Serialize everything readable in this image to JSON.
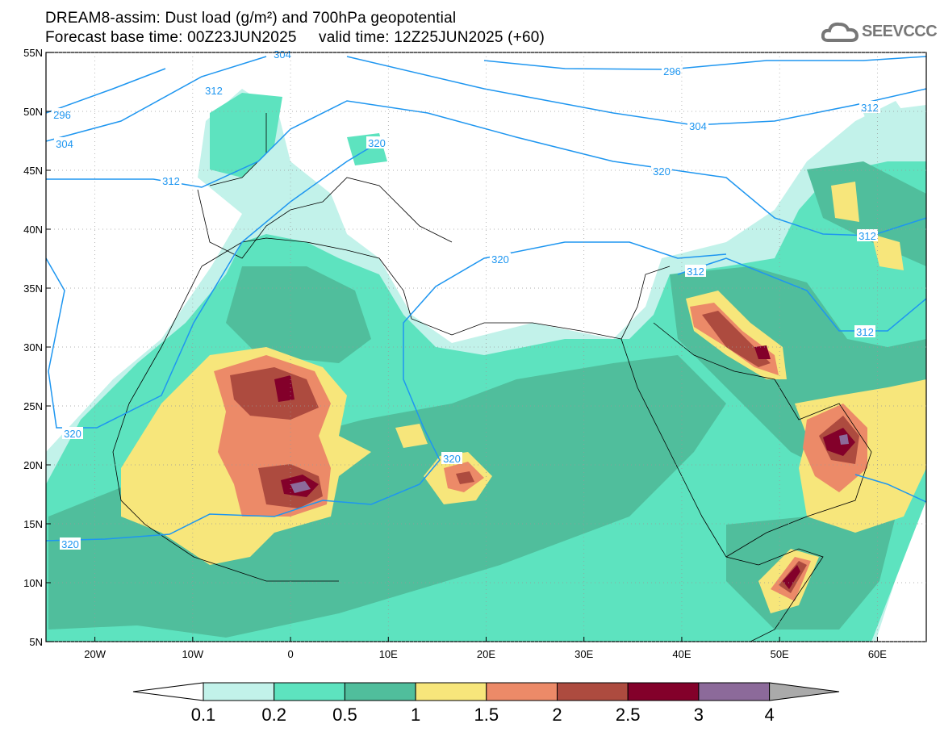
{
  "title": {
    "line1": "DREAM8-assim: Dust load (g/m²) and 700hPa geopotential",
    "line2": "Forecast base time: 00Z23JUN2025     valid time: 12Z25JUN2025 (+60)"
  },
  "logo": {
    "text": "SEEVCCC"
  },
  "axes": {
    "x_ticks": [
      "20W",
      "10W",
      "0",
      "10E",
      "20E",
      "30E",
      "40E",
      "50E",
      "60E"
    ],
    "x_lons": [
      -20,
      -10,
      0,
      10,
      20,
      30,
      40,
      50,
      60
    ],
    "y_ticks": [
      "55N",
      "50N",
      "45N",
      "40N",
      "35N",
      "30N",
      "25N",
      "20N",
      "15N",
      "10N",
      "5N"
    ],
    "y_lats": [
      55,
      50,
      45,
      40,
      35,
      30,
      25,
      20,
      15,
      10,
      5
    ],
    "lon_range": [
      -25,
      65
    ],
    "lat_range": [
      5,
      55
    ]
  },
  "colorbar": {
    "labels": [
      "0.1",
      "0.2",
      "0.5",
      "1",
      "1.5",
      "2",
      "2.5",
      "3",
      "4"
    ],
    "colors": [
      "#c2f2ea",
      "#5de3bf",
      "#50be9c",
      "#f7e67b",
      "#ec8a68",
      "#ad4b3f",
      "#83002a",
      "#8c6a9a"
    ],
    "over_color": "#aaaaaa"
  },
  "contour_labels": [
    "304",
    "296",
    "312",
    "296",
    "304",
    "304",
    "312",
    "320",
    "312",
    "320",
    "312",
    "312",
    "312",
    "320",
    "320",
    "320",
    "320"
  ],
  "contour_color": "#1e96f0"
}
